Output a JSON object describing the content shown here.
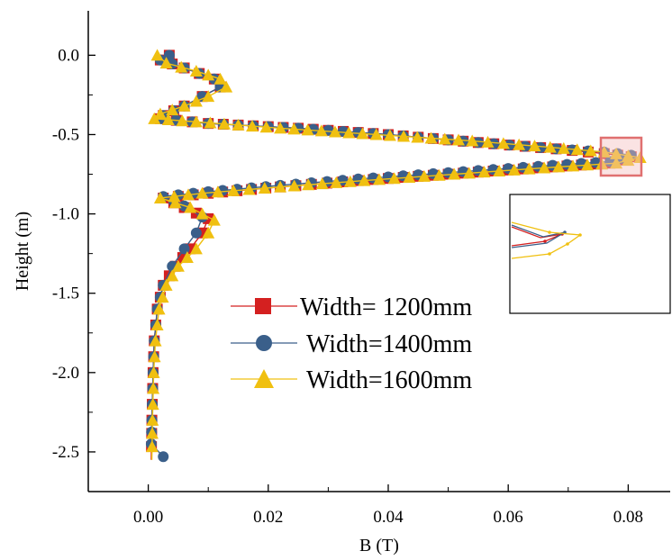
{
  "chart_data": {
    "type": "line",
    "title": "",
    "xlabel": "B (T)",
    "ylabel": "Height (m)",
    "xlim": [
      -0.01,
      0.087
    ],
    "ylim": [
      -2.75,
      0.28
    ],
    "xticks": [
      0.0,
      0.02,
      0.04,
      0.06,
      0.08
    ],
    "xtick_labels": [
      "0.00",
      "0.02",
      "0.04",
      "0.06",
      "0.08"
    ],
    "yticks": [
      0.0,
      -0.5,
      -1.0,
      -1.5,
      -2.0,
      -2.5
    ],
    "ytick_labels": [
      "0.0",
      "-0.5",
      "-1.0",
      "-1.5",
      "-2.0",
      "-2.5"
    ],
    "grid": false,
    "legend_position": "center",
    "inset": "zoom of the peak region (top-right box)",
    "series": [
      {
        "name": "Width= 1200mm",
        "color": "#d42020",
        "marker": "square",
        "points": [
          [
            0.0035,
            0.0
          ],
          [
            0.002,
            -0.03
          ],
          [
            0.006,
            -0.08
          ],
          [
            0.011,
            -0.15
          ],
          [
            0.012,
            -0.2
          ],
          [
            0.009,
            -0.26
          ],
          [
            0.006,
            -0.32
          ],
          [
            0.0025,
            -0.38
          ],
          [
            0.002,
            -0.4
          ],
          [
            0.01,
            -0.43
          ],
          [
            0.025,
            -0.46
          ],
          [
            0.04,
            -0.5
          ],
          [
            0.055,
            -0.55
          ],
          [
            0.068,
            -0.59
          ],
          [
            0.076,
            -0.62
          ],
          [
            0.0805,
            -0.64
          ],
          [
            0.077,
            -0.68
          ],
          [
            0.065,
            -0.71
          ],
          [
            0.05,
            -0.75
          ],
          [
            0.035,
            -0.79
          ],
          [
            0.022,
            -0.83
          ],
          [
            0.01,
            -0.87
          ],
          [
            0.0025,
            -0.9
          ],
          [
            0.006,
            -0.96
          ],
          [
            0.01,
            -1.03
          ],
          [
            0.009,
            -1.12
          ],
          [
            0.007,
            -1.22
          ],
          [
            0.0045,
            -1.33
          ],
          [
            0.0025,
            -1.45
          ],
          [
            0.0015,
            -1.6
          ],
          [
            0.001,
            -1.8
          ],
          [
            0.0008,
            -2.0
          ],
          [
            0.0006,
            -2.3
          ],
          [
            0.0005,
            -2.55
          ]
        ]
      },
      {
        "name": "Width=1400mm",
        "color": "#3a5f8a",
        "marker": "circle",
        "points": [
          [
            0.0035,
            0.0
          ],
          [
            0.002,
            -0.03
          ],
          [
            0.006,
            -0.08
          ],
          [
            0.011,
            -0.15
          ],
          [
            0.012,
            -0.2
          ],
          [
            0.009,
            -0.26
          ],
          [
            0.006,
            -0.32
          ],
          [
            0.0025,
            -0.38
          ],
          [
            0.002,
            -0.4
          ],
          [
            0.01,
            -0.43
          ],
          [
            0.025,
            -0.46
          ],
          [
            0.04,
            -0.5
          ],
          [
            0.055,
            -0.55
          ],
          [
            0.068,
            -0.59
          ],
          [
            0.076,
            -0.61
          ],
          [
            0.0805,
            -0.63
          ],
          [
            0.077,
            -0.67
          ],
          [
            0.065,
            -0.7
          ],
          [
            0.05,
            -0.74
          ],
          [
            0.035,
            -0.78
          ],
          [
            0.022,
            -0.82
          ],
          [
            0.01,
            -0.86
          ],
          [
            0.0025,
            -0.89
          ],
          [
            0.006,
            -0.95
          ],
          [
            0.009,
            -1.02
          ],
          [
            0.008,
            -1.12
          ],
          [
            0.006,
            -1.22
          ],
          [
            0.004,
            -1.33
          ],
          [
            0.0025,
            -1.45
          ],
          [
            0.0015,
            -1.6
          ],
          [
            0.001,
            -1.8
          ],
          [
            0.0008,
            -2.0
          ],
          [
            0.0006,
            -2.3
          ],
          [
            0.0005,
            -2.45
          ],
          [
            0.0025,
            -2.53
          ]
        ]
      },
      {
        "name": "Width=1600mm",
        "color": "#f0c010",
        "marker": "triangle",
        "points": [
          [
            0.0015,
            0.0
          ],
          [
            0.003,
            -0.05
          ],
          [
            0.008,
            -0.1
          ],
          [
            0.012,
            -0.15
          ],
          [
            0.013,
            -0.2
          ],
          [
            0.01,
            -0.26
          ],
          [
            0.006,
            -0.32
          ],
          [
            0.002,
            -0.37
          ],
          [
            0.001,
            -0.4
          ],
          [
            0.008,
            -0.42
          ],
          [
            0.022,
            -0.46
          ],
          [
            0.038,
            -0.5
          ],
          [
            0.054,
            -0.54
          ],
          [
            0.067,
            -0.58
          ],
          [
            0.076,
            -0.61
          ],
          [
            0.082,
            -0.645
          ],
          [
            0.078,
            -0.68
          ],
          [
            0.066,
            -0.71
          ],
          [
            0.051,
            -0.75
          ],
          [
            0.036,
            -0.79
          ],
          [
            0.022,
            -0.83
          ],
          [
            0.009,
            -0.87
          ],
          [
            0.002,
            -0.9
          ],
          [
            0.007,
            -0.96
          ],
          [
            0.011,
            -1.04
          ],
          [
            0.01,
            -1.12
          ],
          [
            0.008,
            -1.22
          ],
          [
            0.005,
            -1.33
          ],
          [
            0.003,
            -1.45
          ],
          [
            0.0018,
            -1.6
          ],
          [
            0.0012,
            -1.8
          ],
          [
            0.0009,
            -2.0
          ],
          [
            0.0007,
            -2.3
          ],
          [
            0.0006,
            -2.55
          ]
        ]
      }
    ]
  }
}
